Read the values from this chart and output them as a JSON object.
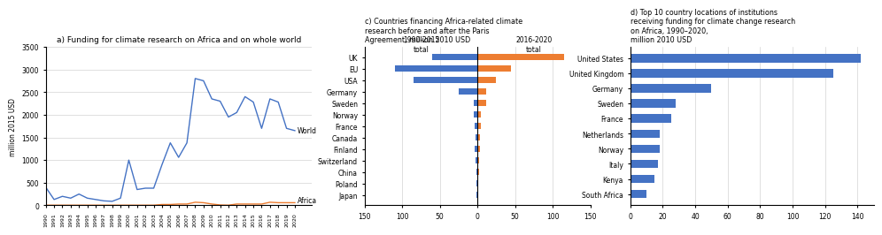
{
  "title_a": "a) Funding for climate research on Africa and on whole world",
  "title_c": "c) Countries financing Africa-related climate\nresearch before and after the Paris\nAgreement, million 2010 USD",
  "title_d": "d) Top 10 country locations of institutions\nreceiving funding for climate change research\non Africa, 1990–2020,\nmillion 2010 USD",
  "years": [
    1990,
    1991,
    1992,
    1993,
    1994,
    1995,
    1996,
    1997,
    1998,
    1999,
    2000,
    2001,
    2002,
    2003,
    2004,
    2005,
    2006,
    2007,
    2008,
    2009,
    2010,
    2011,
    2012,
    2013,
    2014,
    2015,
    2016,
    2017,
    2018,
    2019,
    2020
  ],
  "world": [
    400,
    130,
    200,
    160,
    250,
    160,
    130,
    100,
    90,
    160,
    1000,
    350,
    380,
    380,
    900,
    1380,
    1060,
    1380,
    2800,
    2750,
    2350,
    2300,
    1950,
    2050,
    2400,
    2280,
    1700,
    2350,
    2280,
    1700,
    1650
  ],
  "africa": [
    5,
    5,
    5,
    5,
    5,
    5,
    5,
    5,
    5,
    5,
    5,
    5,
    5,
    5,
    20,
    20,
    30,
    30,
    70,
    60,
    30,
    10,
    5,
    30,
    30,
    30,
    30,
    70,
    60,
    60,
    60
  ],
  "world_color": "#4472c4",
  "africa_color": "#ed7d31",
  "ylabel_a": "million 2015 USD",
  "ylim_a": [
    0,
    3500
  ],
  "yticks_a": [
    0,
    500,
    1000,
    1500,
    2000,
    2500,
    3000,
    3500
  ],
  "c_countries": [
    "UK",
    "EU",
    "USA",
    "Germany",
    "Sweden",
    "Norway",
    "France",
    "Canada",
    "Finland",
    "Switzerland",
    "China",
    "Poland",
    "Japan"
  ],
  "c_pre": [
    60,
    110,
    85,
    25,
    5,
    5,
    4,
    3,
    4,
    2,
    1,
    1,
    1
  ],
  "c_post": [
    115,
    45,
    25,
    12,
    12,
    5,
    4,
    3,
    3,
    2,
    2,
    1,
    1
  ],
  "c_pre_color": "#4472c4",
  "c_post_color": "#ed7d31",
  "d_countries": [
    "United States",
    "United Kingdom",
    "Germany",
    "Sweden",
    "France",
    "Netherlands",
    "Norway",
    "Italy",
    "Kenya",
    "South Africa"
  ],
  "d_values": [
    142,
    125,
    50,
    28,
    25,
    18,
    18,
    17,
    15,
    10
  ],
  "d_color": "#4472c4",
  "d_xlim": [
    0,
    150
  ],
  "d_xticks": [
    0,
    20,
    40,
    60,
    80,
    100,
    120,
    140
  ]
}
